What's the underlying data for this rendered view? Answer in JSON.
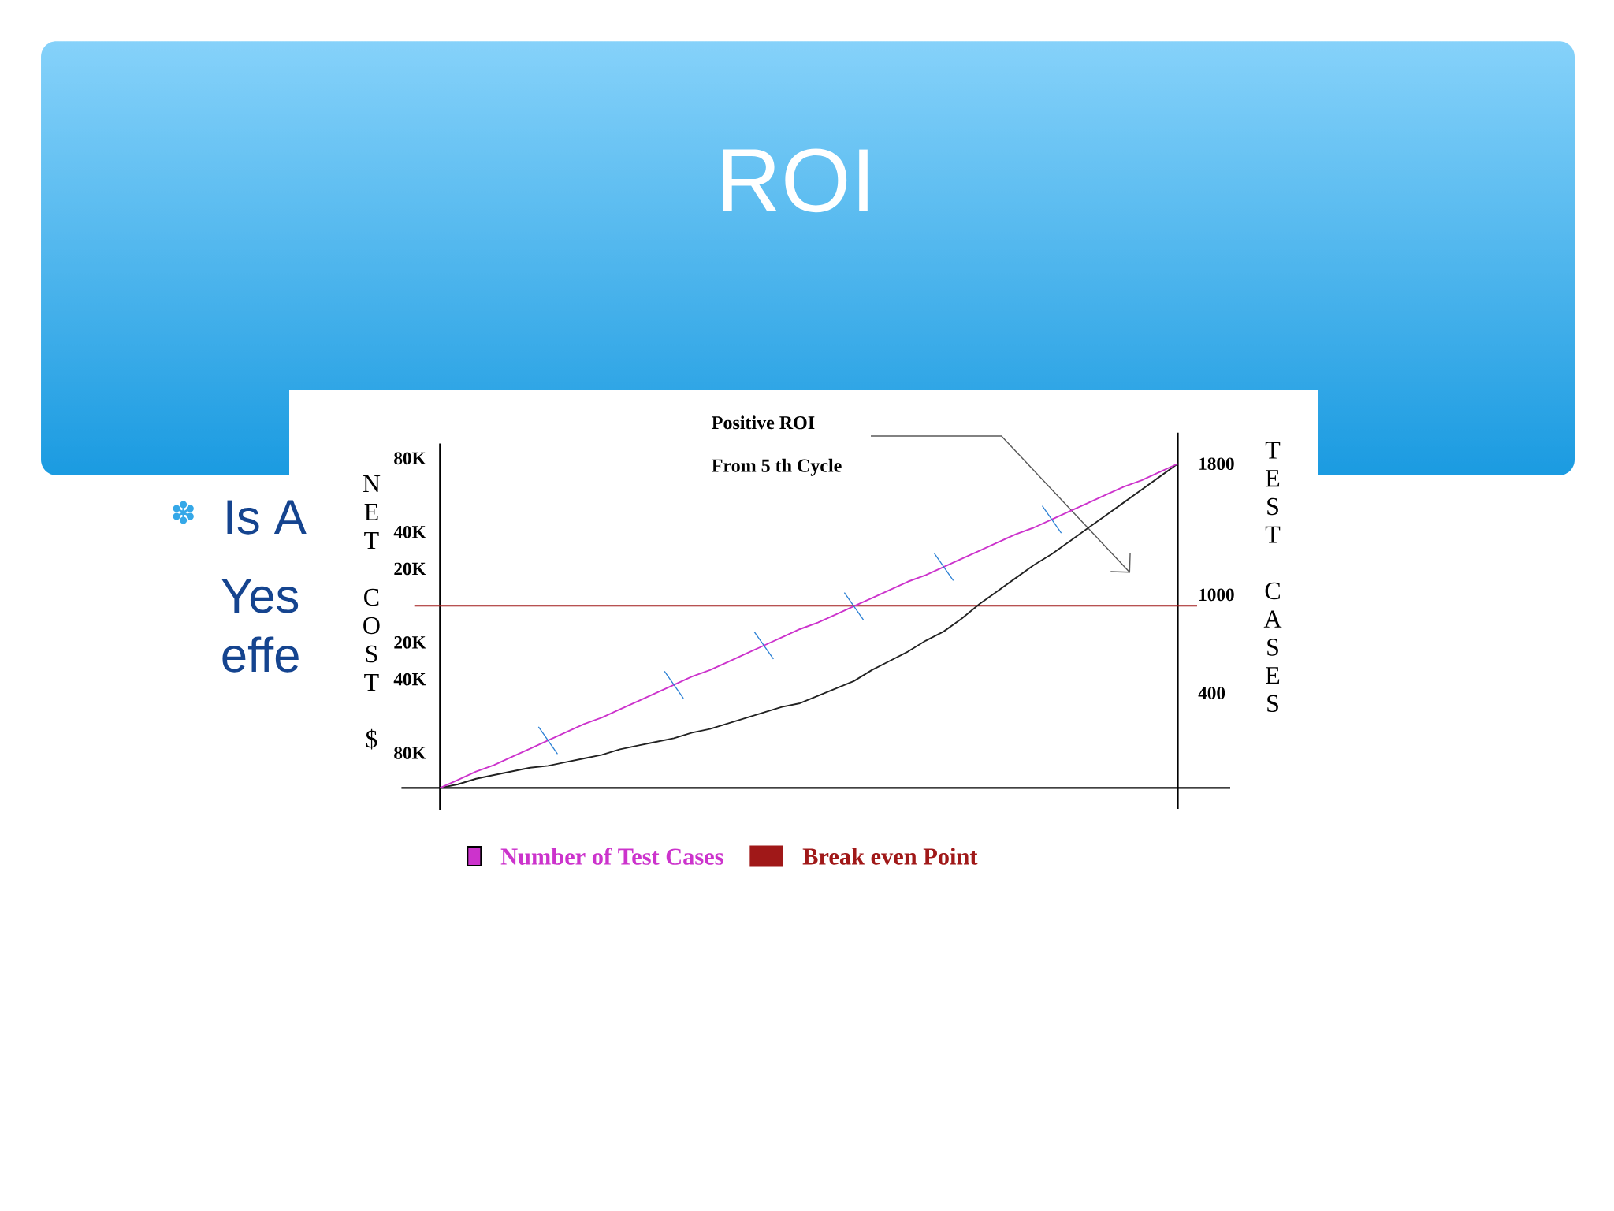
{
  "chart_data": {
    "type": "line",
    "title": "ROI",
    "ylabel": "NET COST $",
    "y2label": "TEST CASES",
    "categories": [
      null,
      null,
      null,
      null,
      null,
      null,
      null,
      null,
      null,
      null,
      null,
      null,
      null,
      null,
      null,
      null,
      null,
      null,
      null,
      null,
      null,
      null,
      null,
      null,
      null,
      null,
      null,
      null,
      null,
      null,
      null,
      null,
      null,
      null,
      null,
      null,
      null,
      null,
      null,
      null,
      null,
      null
    ],
    "series": [
      {
        "name": "Number of Test Cases",
        "color": "#cc33cc",
        "axis": "y2",
        "values": [
          -180,
          -130,
          -80,
          -40,
          10,
          60,
          110,
          160,
          210,
          250,
          300,
          350,
          400,
          450,
          500,
          540,
          590,
          640,
          690,
          740,
          790,
          830,
          880,
          930,
          980,
          1030,
          1080,
          1120,
          1170,
          1220,
          1270,
          1320,
          1370,
          1410,
          1460,
          1510,
          1560,
          1610,
          1660,
          1700,
          1750,
          1800
        ]
      },
      {
        "color": "#222222",
        "values": [
          -99000,
          -97000,
          -94000,
          -92000,
          -90000,
          -88000,
          -87000,
          -85000,
          -83000,
          -81000,
          -78000,
          -76000,
          -74000,
          -72000,
          -69000,
          -67000,
          -64000,
          -61000,
          -58000,
          -55000,
          -53000,
          -49000,
          -45000,
          -41000,
          -35000,
          -30000,
          -25000,
          -19000,
          -14000,
          -7000,
          1000,
          8000,
          15000,
          22000,
          28000,
          35000,
          42000,
          49000,
          56000,
          63000,
          70000,
          77000
        ]
      },
      {
        "type": "scatter",
        "color": "#2a7fd4",
        "axis": "y2",
        "marker": "cross",
        "values": [
          null,
          null,
          null,
          null,
          null,
          null,
          110,
          null,
          null,
          null,
          null,
          null,
          null,
          450,
          null,
          null,
          null,
          null,
          690,
          null,
          null,
          null,
          null,
          930,
          null,
          null,
          null,
          null,
          1170,
          null,
          null,
          null,
          null,
          null,
          1460,
          null,
          null,
          null,
          null,
          null,
          null,
          null
        ]
      }
    ],
    "ylim": [
      -99000,
      88000
    ],
    "yticks": [
      {
        "value": 80000,
        "label": "80K"
      },
      {
        "value": 40000,
        "label": "40K"
      },
      {
        "value": 20000,
        "label": "20K"
      },
      {
        "value": -20000,
        "label": "20K"
      },
      {
        "value": -40000,
        "label": "40K"
      },
      {
        "value": -80000,
        "label": "80K"
      }
    ],
    "y2lim": [
      -180,
      1990
    ],
    "y2ticks": [
      1800,
      1000,
      400
    ],
    "ref_lines": [
      {
        "axis": "y",
        "value": 0,
        "label": "Break even Point",
        "color": "#a01818"
      }
    ],
    "annotations": [
      "Positive ROI",
      "From 5 th Cycle",
      "Is A",
      "Yes",
      "effe"
    ],
    "legend": "bottom"
  }
}
